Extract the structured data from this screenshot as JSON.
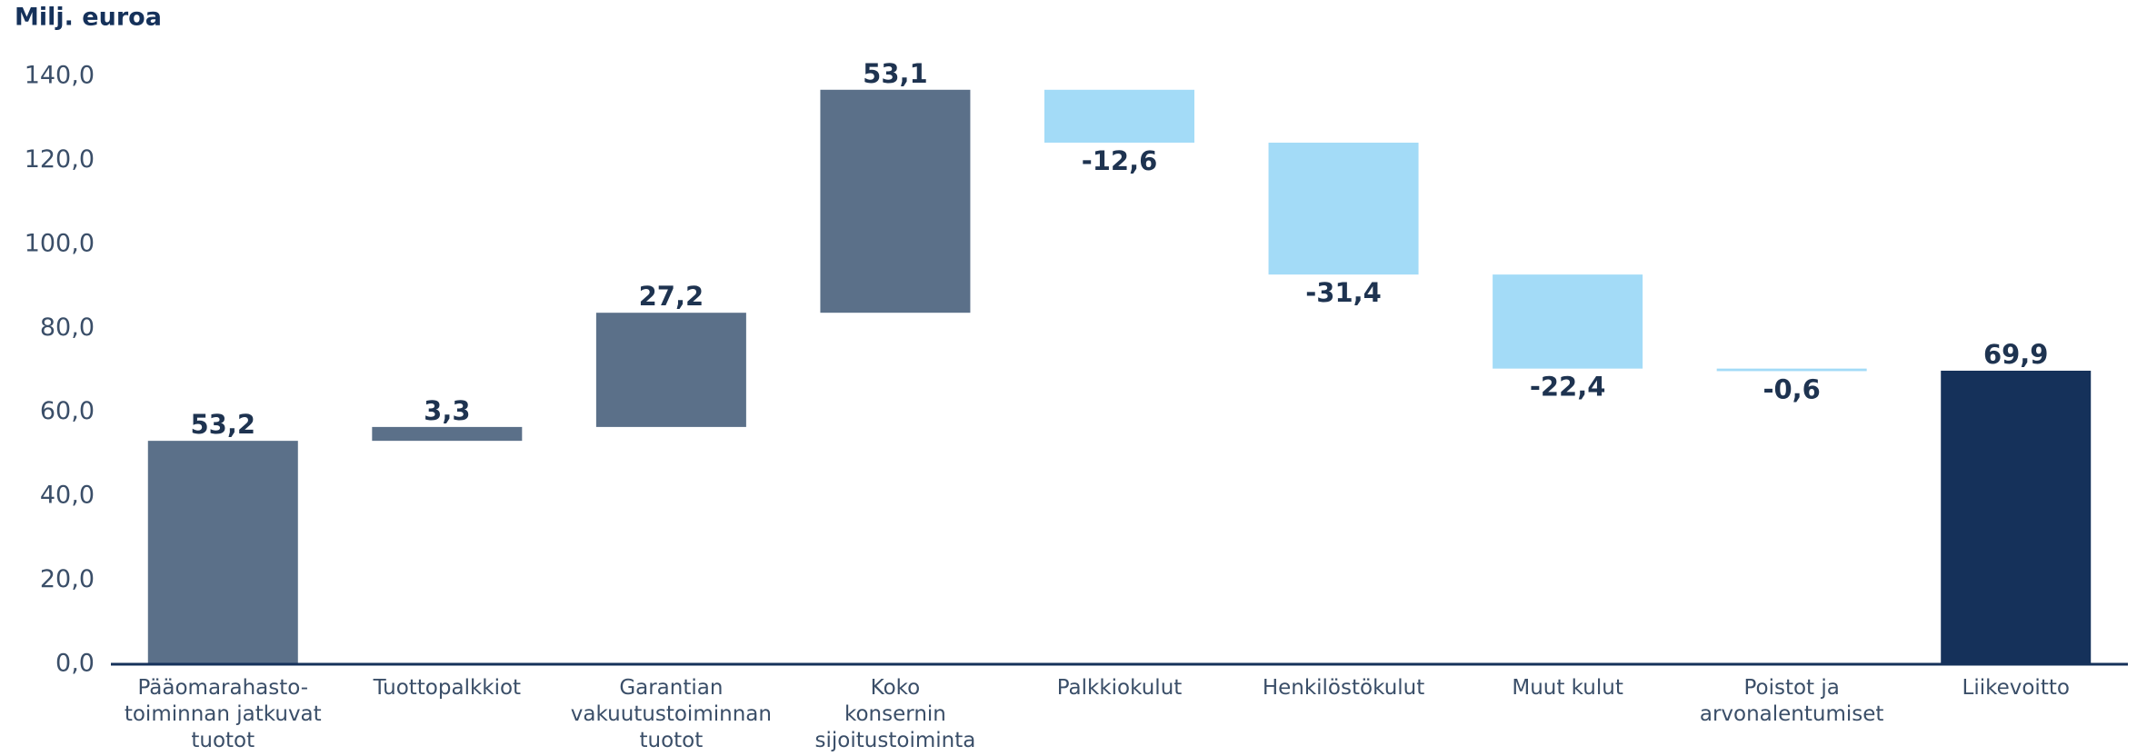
{
  "chart_data": {
    "type": "waterfall",
    "title": "Milj. euroa",
    "categories": [
      "Pääomarahasto-\ntoiminnan jatkuvat\ntuotot",
      "Tuottopalkkiot",
      "Garantian\nvakuutustoiminnan\ntuotot",
      "Koko\nkonsernin\nsijoitustoiminta",
      "Palkkiokulut",
      "Henkilöstökulut",
      "Muut kulut",
      "Poistot ja\narvonalentumiset",
      "Liikevoitto"
    ],
    "values": [
      53.2,
      3.3,
      27.2,
      53.1,
      -12.6,
      -31.4,
      -22.4,
      -0.6,
      69.9
    ],
    "value_labels": [
      "53,2",
      "3,3",
      "27,2",
      "53,1",
      "-12,6",
      "-31,4",
      "-22,4",
      "-0,6",
      "69,9"
    ],
    "totals": [
      false,
      false,
      false,
      false,
      false,
      false,
      false,
      false,
      true
    ],
    "colors": [
      "#5b7089",
      "#5b7089",
      "#5b7089",
      "#5b7089",
      "#a3dbf7",
      "#a3dbf7",
      "#a3dbf7",
      "#a3dbf7",
      "#15315a"
    ],
    "ylim": [
      0,
      140
    ],
    "yticks": [
      {
        "value": 0,
        "label": "0,0"
      },
      {
        "value": 20,
        "label": "20,0"
      },
      {
        "value": 40,
        "label": "40,0"
      },
      {
        "value": 60,
        "label": "60,0"
      },
      {
        "value": 80,
        "label": "80,0"
      },
      {
        "value": 100,
        "label": "100,0"
      },
      {
        "value": 120,
        "label": "120,0"
      },
      {
        "value": 140,
        "label": "140,0"
      }
    ],
    "grid": false
  }
}
